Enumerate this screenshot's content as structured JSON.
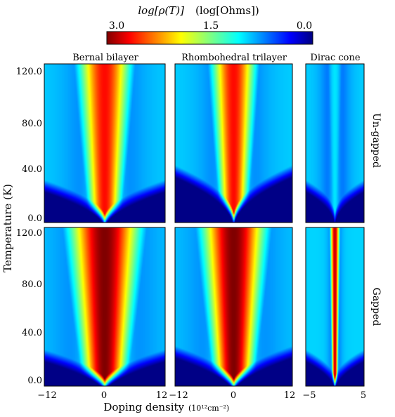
{
  "colorbar": {
    "label_main": "log[ρ(T)]",
    "label_units": "(log[Ohms])",
    "ticks": [
      "3.0",
      "1.5",
      "0.0"
    ],
    "range": [
      0.0,
      3.0
    ],
    "colormap": "jet"
  },
  "columns": [
    {
      "title": "Bernal bilayer"
    },
    {
      "title": "Rhombohedral trilayer"
    },
    {
      "title": "Dirac cone"
    }
  ],
  "rows": [
    {
      "label": "Un-gapped"
    },
    {
      "label": "Gapped"
    }
  ],
  "ylabel": "Temperature (K)",
  "xlabel": "Doping density",
  "xlabel_units": "(10¹²cm⁻²)",
  "yticks_top": [
    "120.0",
    "80.0",
    "40.0",
    "0.0"
  ],
  "yticks_bottom": [
    "120.0",
    "80.0",
    "40.0",
    "0.0"
  ],
  "xticks": [
    [
      "−12",
      "0",
      "12"
    ],
    [
      "−12",
      "0",
      "12"
    ],
    [
      "−5",
      "5"
    ]
  ],
  "chart_data": [
    {
      "type": "heatmap",
      "title": "Bernal bilayer",
      "row": "Un-gapped",
      "xlim": [
        -12,
        12
      ],
      "ylim": [
        -5,
        125
      ],
      "xlabel": "Doping density",
      "ylabel": "Temperature (K)",
      "peak_log_rho": 2.6,
      "core_width": 2.3,
      "plateau": 1.0,
      "dark_temp_at_center": 0,
      "dark_temp_at_edge": 30,
      "dark_slope": 0.55
    },
    {
      "type": "heatmap",
      "title": "Rhombohedral trilayer",
      "row": "Un-gapped",
      "xlim": [
        -12,
        12
      ],
      "ylim": [
        -5,
        125
      ],
      "peak_log_rho": 2.6,
      "core_width": 2.0,
      "plateau": 1.0,
      "dark_temp_at_center": 0,
      "dark_temp_at_edge": 42,
      "dark_slope": 0.5
    },
    {
      "type": "heatmap",
      "title": "Dirac cone",
      "row": "Un-gapped",
      "xlim": [
        -5,
        5
      ],
      "ylim": [
        -5,
        125
      ],
      "peak_log_rho": 1.05,
      "core_width": 0.8,
      "plateau": 1.0,
      "dark_temp_at_center": 0,
      "dark_temp_at_edge": 30,
      "dark_slope": 0.45
    },
    {
      "type": "heatmap",
      "title": "Bernal bilayer",
      "row": "Gapped",
      "xlim": [
        -12,
        12
      ],
      "ylim": [
        -5,
        125
      ],
      "peak_log_rho": 3.0,
      "core_width": 3.0,
      "plateau": 1.0,
      "dark_temp_at_center": 0,
      "dark_temp_at_edge": 25,
      "dark_slope": 0.6
    },
    {
      "type": "heatmap",
      "title": "Rhombohedral trilayer",
      "row": "Gapped",
      "xlim": [
        -12,
        12
      ],
      "ylim": [
        -5,
        125
      ],
      "peak_log_rho": 3.0,
      "core_width": 2.8,
      "plateau": 1.0,
      "dark_temp_at_center": 0,
      "dark_temp_at_edge": 28,
      "dark_slope": 0.6
    },
    {
      "type": "heatmap",
      "title": "Dirac cone",
      "row": "Gapped",
      "xlim": [
        -5,
        5
      ],
      "ylim": [
        -5,
        125
      ],
      "peak_log_rho": 2.8,
      "core_width": 0.35,
      "plateau": 1.0,
      "dark_temp_at_center": 0,
      "dark_temp_at_edge": 25,
      "dark_slope": 0.5
    }
  ]
}
